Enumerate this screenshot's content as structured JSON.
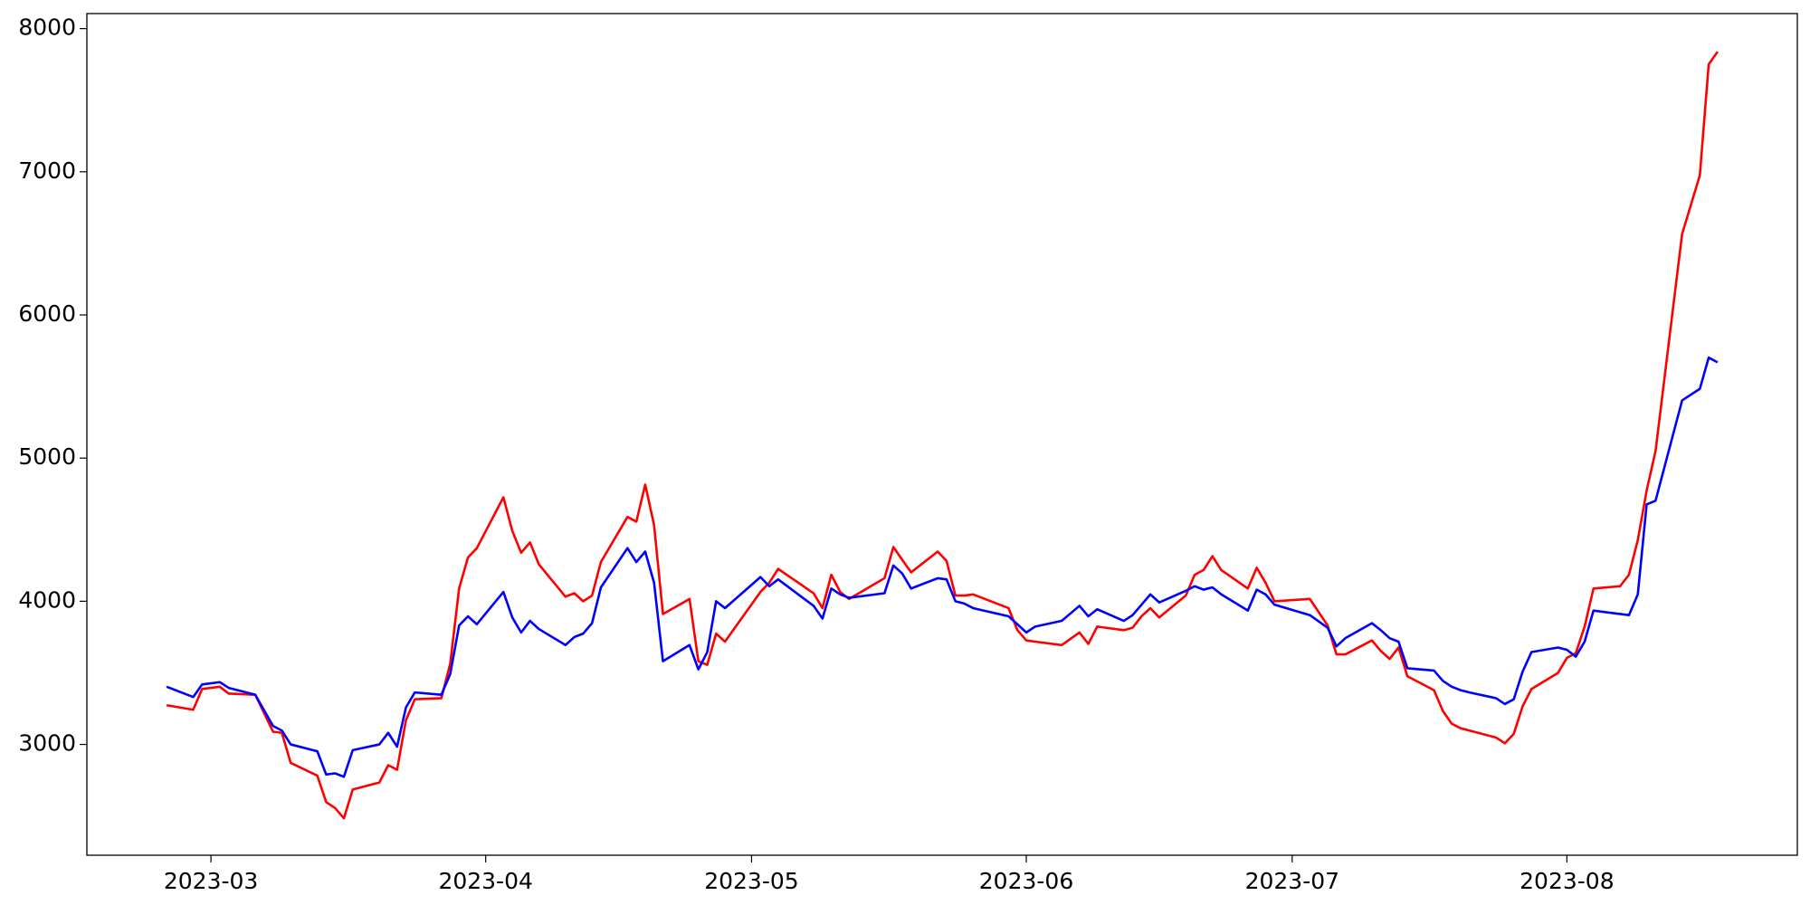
{
  "chart_data": {
    "type": "line",
    "x": [
      "2023-02-24",
      "2023-02-27",
      "2023-02-28",
      "2023-03-02",
      "2023-03-03",
      "2023-03-06",
      "2023-03-08",
      "2023-03-09",
      "2023-03-10",
      "2023-03-13",
      "2023-03-14",
      "2023-03-15",
      "2023-03-16",
      "2023-03-17",
      "2023-03-20",
      "2023-03-21",
      "2023-03-22",
      "2023-03-23",
      "2023-03-24",
      "2023-03-27",
      "2023-03-28",
      "2023-03-29",
      "2023-03-30",
      "2023-03-31",
      "2023-04-03",
      "2023-04-04",
      "2023-04-05",
      "2023-04-06",
      "2023-04-07",
      "2023-04-10",
      "2023-04-11",
      "2023-04-12",
      "2023-04-13",
      "2023-04-14",
      "2023-04-17",
      "2023-04-18",
      "2023-04-19",
      "2023-04-20",
      "2023-04-21",
      "2023-04-24",
      "2023-04-25",
      "2023-04-26",
      "2023-04-27",
      "2023-04-28",
      "2023-05-02",
      "2023-05-03",
      "2023-05-04",
      "2023-05-08",
      "2023-05-09",
      "2023-05-10",
      "2023-05-11",
      "2023-05-12",
      "2023-05-16",
      "2023-05-17",
      "2023-05-18",
      "2023-05-19",
      "2023-05-22",
      "2023-05-23",
      "2023-05-24",
      "2023-05-25",
      "2023-05-26",
      "2023-05-30",
      "2023-05-31",
      "2023-06-01",
      "2023-06-02",
      "2023-06-05",
      "2023-06-07",
      "2023-06-08",
      "2023-06-09",
      "2023-06-12",
      "2023-06-13",
      "2023-06-14",
      "2023-06-15",
      "2023-06-16",
      "2023-06-19",
      "2023-06-20",
      "2023-06-21",
      "2023-06-22",
      "2023-06-23",
      "2023-06-26",
      "2023-06-27",
      "2023-06-28",
      "2023-06-29",
      "2023-07-03",
      "2023-07-05",
      "2023-07-06",
      "2023-07-07",
      "2023-07-10",
      "2023-07-11",
      "2023-07-12",
      "2023-07-13",
      "2023-07-14",
      "2023-07-17",
      "2023-07-18",
      "2023-07-19",
      "2023-07-20",
      "2023-07-21",
      "2023-07-24",
      "2023-07-25",
      "2023-07-26",
      "2023-07-27",
      "2023-07-28",
      "2023-07-31",
      "2023-08-01",
      "2023-08-02",
      "2023-08-03",
      "2023-08-04",
      "2023-08-07",
      "2023-08-08",
      "2023-08-09",
      "2023-08-10",
      "2023-08-11",
      "2023-08-14",
      "2023-08-16",
      "2023-08-17",
      "2023-08-18"
    ],
    "series": [
      {
        "color": "#ff0000",
        "values": [
          3274,
          3242,
          3387,
          3403,
          3355,
          3347,
          3089,
          3081,
          2871,
          2782,
          2597,
          2556,
          2484,
          2685,
          2734,
          2855,
          2823,
          3169,
          3315,
          3323,
          3565,
          4089,
          4306,
          4371,
          4726,
          4492,
          4339,
          4411,
          4258,
          4032,
          4056,
          4000,
          4040,
          4274,
          4589,
          4556,
          4815,
          4532,
          3911,
          4016,
          3581,
          3556,
          3774,
          3718,
          4065,
          4129,
          4226,
          4056,
          3952,
          4185,
          4065,
          4016,
          4161,
          4379,
          4290,
          4202,
          4347,
          4282,
          4040,
          4040,
          4048,
          3952,
          3798,
          3726,
          3718,
          3694,
          3782,
          3702,
          3823,
          3798,
          3815,
          3895,
          3952,
          3887,
          4040,
          4185,
          4218,
          4315,
          4218,
          4089,
          4234,
          4129,
          4000,
          4016,
          3831,
          3629,
          3629,
          3726,
          3653,
          3597,
          3677,
          3476,
          3379,
          3234,
          3145,
          3113,
          3097,
          3048,
          3008,
          3073,
          3266,
          3387,
          3500,
          3605,
          3637,
          3823,
          4089,
          4105,
          4185,
          4427,
          4774,
          5048,
          6565,
          6976,
          7750,
          7839
        ]
      },
      {
        "color": "#0000ff",
        "values": [
          3403,
          3331,
          3419,
          3435,
          3395,
          3347,
          3129,
          3097,
          3000,
          2952,
          2790,
          2798,
          2774,
          2960,
          3000,
          3081,
          2984,
          3258,
          3363,
          3347,
          3492,
          3831,
          3895,
          3839,
          4065,
          3887,
          3782,
          3863,
          3806,
          3694,
          3750,
          3774,
          3847,
          4097,
          4371,
          4274,
          4347,
          4129,
          3581,
          3694,
          3524,
          3645,
          4000,
          3952,
          4169,
          4105,
          4153,
          3968,
          3879,
          4089,
          4048,
          4024,
          4056,
          4250,
          4194,
          4089,
          4161,
          4153,
          4000,
          3984,
          3952,
          3895,
          3839,
          3782,
          3823,
          3863,
          3968,
          3895,
          3944,
          3863,
          3903,
          3976,
          4048,
          3992,
          4073,
          4105,
          4081,
          4097,
          4048,
          3935,
          4081,
          4048,
          3976,
          3903,
          3815,
          3685,
          3742,
          3847,
          3798,
          3742,
          3718,
          3532,
          3516,
          3444,
          3403,
          3379,
          3363,
          3323,
          3282,
          3315,
          3508,
          3645,
          3677,
          3661,
          3613,
          3718,
          3935,
          3911,
          3903,
          4048,
          4677,
          4702,
          5403,
          5484,
          5702,
          5669
        ]
      }
    ],
    "xlim": [
      "2023-02-15",
      "2023-08-27"
    ],
    "xticks": [
      {
        "value": "2023-03-01",
        "label": "2023-03"
      },
      {
        "value": "2023-04-01",
        "label": "2023-04"
      },
      {
        "value": "2023-05-01",
        "label": "2023-05"
      },
      {
        "value": "2023-06-01",
        "label": "2023-06"
      },
      {
        "value": "2023-07-01",
        "label": "2023-07"
      },
      {
        "value": "2023-08-01",
        "label": "2023-08"
      }
    ],
    "ylim": [
      2226,
      8105
    ],
    "yticks": [
      3000,
      4000,
      5000,
      6000,
      7000,
      8000
    ]
  }
}
